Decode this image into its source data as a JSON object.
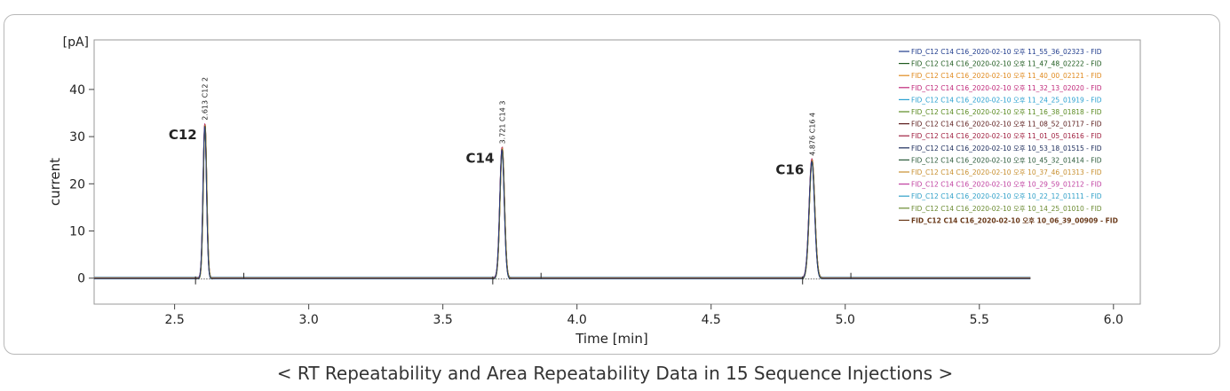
{
  "caption": "< RT Repeatability and Area Repeatability Data in 15 Sequence Injections >",
  "chart_data": {
    "type": "line",
    "xlabel": "Time [min]",
    "ylabel": "current",
    "yunit": "[pA]",
    "xlim": [
      2.2,
      6.1
    ],
    "ylim": [
      -5.5,
      50.5
    ],
    "xticks": [
      2.5,
      3.0,
      3.5,
      4.0,
      4.5,
      5.0,
      5.5,
      6.0
    ],
    "xtick_labels": [
      "2.5",
      "3.0",
      "3.5",
      "4.0",
      "4.5",
      "5.0",
      "5.5",
      "6.0"
    ],
    "yticks": [
      0,
      10,
      20,
      30,
      40
    ],
    "ytick_labels": [
      "0",
      "10",
      "20",
      "30",
      "40"
    ],
    "trace_x_range": [
      2.2,
      5.69
    ],
    "grid": false,
    "legend_position": "top-right",
    "peaks": [
      {
        "name": "C12",
        "rt": 2.613,
        "height": 32.5,
        "annotation": "2.613 C12  2"
      },
      {
        "name": "C14",
        "rt": 3.721,
        "height": 27.5,
        "annotation": "3.721 C14  3"
      },
      {
        "name": "C16",
        "rt": 4.876,
        "height": 25.0,
        "annotation": "4.876 C16  4"
      }
    ],
    "series": [
      {
        "name": "FID_C12 C14 C16_2020-02-10 오후 11_55_36_02323 - FID",
        "color": "#1f3b8c"
      },
      {
        "name": "FID_C12 C14 C16_2020-02-10 오후 11_47_48_02222 - FID",
        "color": "#1e5a1e"
      },
      {
        "name": "FID_C12 C14 C16_2020-02-10 오후 11_40_00_02121 - FID",
        "color": "#e08a1e"
      },
      {
        "name": "FID_C12 C14 C16_2020-02-10 오후 11_32_13_02020 - FID",
        "color": "#c0287a"
      },
      {
        "name": "FID_C12 C14 C16_2020-02-10 오후 11_24_25_01919 - FID",
        "color": "#2aa0d0"
      },
      {
        "name": "FID_C12 C14 C16_2020-02-10 오후 11_16_38_01818 - FID",
        "color": "#5a8a20"
      },
      {
        "name": "FID_C12 C14 C16_2020-02-10 오후 11_08_52_01717 - FID",
        "color": "#5a1a1a"
      },
      {
        "name": "FID_C12 C14 C16_2020-02-10 오후 11_01_05_01616 - FID",
        "color": "#a02040"
      },
      {
        "name": "FID_C12 C14 C16_2020-02-10 오후 10_53_18_01515 - FID",
        "color": "#1a2a5a"
      },
      {
        "name": "FID_C12 C14 C16_2020-02-10 오후 10_45_32_01414 - FID",
        "color": "#2a5a3a"
      },
      {
        "name": "FID_C12 C14 C16_2020-02-10 오후 10_37_46_01313 - FID",
        "color": "#c89030"
      },
      {
        "name": "FID_C12 C14 C16_2020-02-10 오후 10_29_59_01212 - FID",
        "color": "#c040a0"
      },
      {
        "name": "FID_C12 C14 C16_2020-02-10 오후 10_22_12_01111 - FID",
        "color": "#30a0c8"
      },
      {
        "name": "FID_C12 C14 C16_2020-02-10 오후 10_14_25_01010 - FID",
        "color": "#6a8a30"
      },
      {
        "name": "FID_C12 C14 C16_2020-02-10 오후 10_06_39_00909 - FID",
        "color": "#6a3a1a"
      }
    ]
  }
}
